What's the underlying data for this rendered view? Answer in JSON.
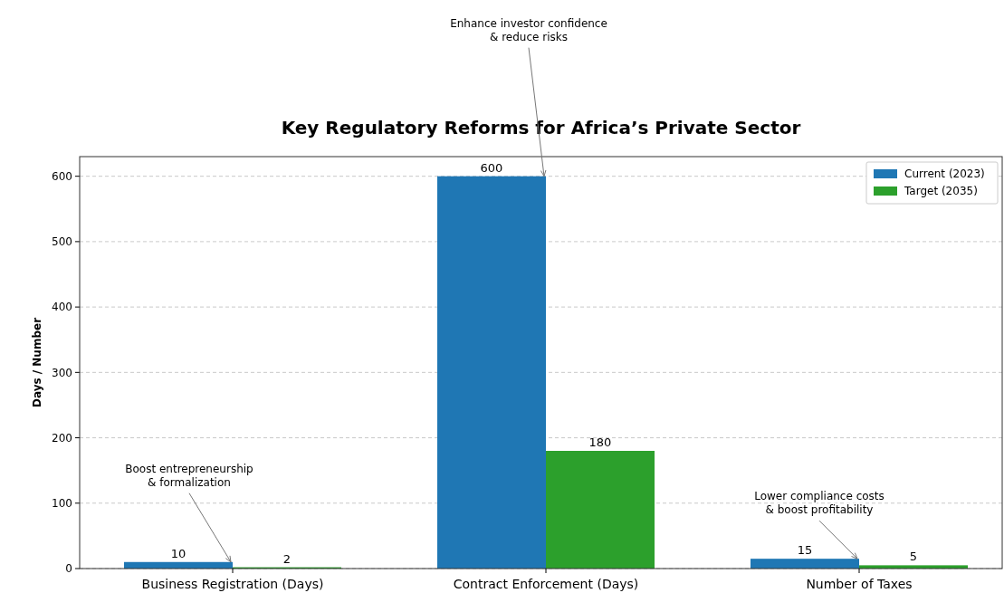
{
  "chart_data": {
    "type": "bar",
    "title": "Key Regulatory Reforms for Africa’s Private Sector",
    "ylabel": "Days / Number",
    "categories": [
      "Business Registration (Days)",
      "Contract Enforcement (Days)",
      "Number of Taxes"
    ],
    "series": [
      {
        "name": "Current (2023)",
        "color": "#1f77b4",
        "values": [
          10,
          600,
          15
        ]
      },
      {
        "name": "Target (2035)",
        "color": "#2ca02c",
        "values": [
          2,
          180,
          5
        ]
      }
    ],
    "ylim": [
      0,
      630
    ],
    "yticks": [
      0,
      100,
      200,
      300,
      400,
      500,
      600
    ],
    "grid": "y",
    "legend": "top right",
    "data_labels": true,
    "annotations": [
      {
        "text": "Boost entrepreneurship\n& formalization",
        "x": "Business Registration (Days)",
        "y": 10
      },
      {
        "text": "Enhance investor confidence\n& reduce risks",
        "x": "Contract Enforcement (Days)",
        "y": 600
      },
      {
        "text": "Lower compliance costs\n& boost profitability",
        "x": "Number of Taxes",
        "y": 15
      }
    ]
  }
}
